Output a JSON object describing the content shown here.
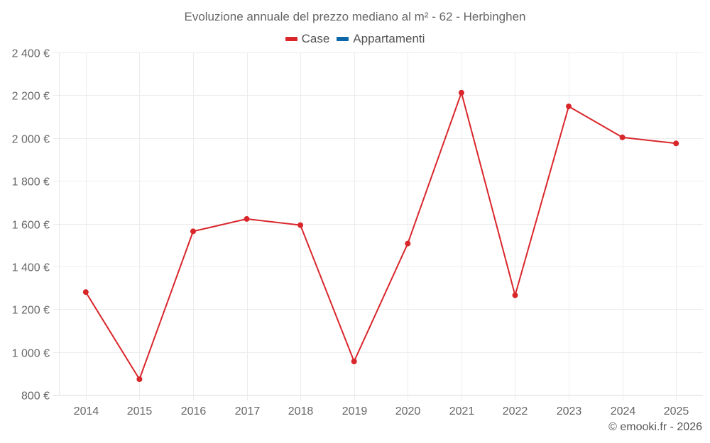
{
  "chart_data": {
    "type": "line",
    "title": "Evoluzione annuale del prezzo mediano al m² - 62 - Herbinghen",
    "xlabel": "",
    "ylabel": "",
    "categories": [
      "2014",
      "2015",
      "2016",
      "2017",
      "2018",
      "2019",
      "2020",
      "2021",
      "2022",
      "2023",
      "2024",
      "2025"
    ],
    "series": [
      {
        "name": "Case",
        "color": "#d9262b",
        "values": [
          1280,
          873,
          1564,
          1622,
          1593,
          956,
          1507,
          2212,
          1265,
          2148,
          2003,
          1975
        ]
      },
      {
        "name": "Appartamenti",
        "color": "#0b67a5",
        "values": []
      }
    ],
    "ylim": [
      800,
      2400
    ],
    "yticks": [
      800,
      1000,
      1200,
      1400,
      1600,
      1800,
      2000,
      2200,
      2400
    ],
    "ytick_labels": [
      "800 €",
      "1 000 €",
      "1 200 €",
      "1 400 €",
      "1 600 €",
      "1 800 €",
      "2 000 €",
      "2 200 €",
      "2 400 €"
    ],
    "grid": true,
    "legend_position": "top-center"
  },
  "legend": {
    "items": [
      {
        "label": "Case",
        "color": "#d9262b"
      },
      {
        "label": "Appartamenti",
        "color": "#0b67a5"
      }
    ]
  },
  "credit": "© emooki.fr - 2026"
}
